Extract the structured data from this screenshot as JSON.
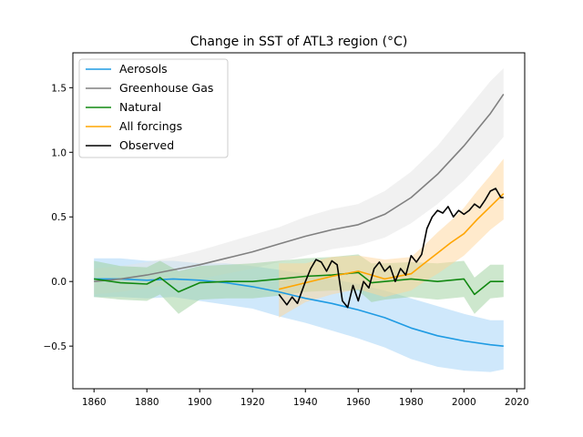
{
  "chart_data": {
    "type": "line",
    "title": "Change in SST of ATL3 region (°C)",
    "xlabel": "",
    "ylabel": "",
    "xlim": [
      1852,
      2023
    ],
    "ylim": [
      -0.83,
      1.77
    ],
    "xticks": [
      1860,
      1880,
      1900,
      1920,
      1940,
      1960,
      1980,
      2000,
      2020
    ],
    "yticks": [
      -0.5,
      0.0,
      0.5,
      1.0,
      1.5
    ],
    "ytick_labels": [
      "−0.5",
      "0.0",
      "0.5",
      "1.0",
      "1.5"
    ],
    "grid": false,
    "legend_position": "top-left",
    "series": [
      {
        "name": "Aerosols",
        "color": "#1f9be3",
        "band_color": "#9fd2f7",
        "x": [
          1860,
          1870,
          1880,
          1890,
          1900,
          1910,
          1920,
          1930,
          1940,
          1950,
          1960,
          1970,
          1980,
          1990,
          2000,
          2010,
          2015
        ],
        "y": [
          0.02,
          0.02,
          0.01,
          0.02,
          0.01,
          -0.01,
          -0.04,
          -0.08,
          -0.13,
          -0.17,
          -0.22,
          -0.28,
          -0.36,
          -0.42,
          -0.46,
          -0.49,
          -0.5
        ],
        "lo": [
          -0.12,
          -0.12,
          -0.13,
          -0.12,
          -0.15,
          -0.18,
          -0.21,
          -0.27,
          -0.32,
          -0.38,
          -0.44,
          -0.51,
          -0.6,
          -0.66,
          -0.69,
          -0.7,
          -0.68
        ],
        "hi": [
          0.18,
          0.18,
          0.16,
          0.16,
          0.14,
          0.14,
          0.12,
          0.09,
          0.06,
          0.02,
          -0.02,
          -0.07,
          -0.13,
          -0.19,
          -0.25,
          -0.3,
          -0.3
        ]
      },
      {
        "name": "Greenhouse Gas",
        "color": "#808080",
        "band_color": "#e3e3e3",
        "x": [
          1860,
          1870,
          1880,
          1890,
          1900,
          1910,
          1920,
          1930,
          1940,
          1950,
          1960,
          1970,
          1980,
          1990,
          2000,
          2010,
          2015
        ],
        "y": [
          0.0,
          0.02,
          0.05,
          0.09,
          0.13,
          0.18,
          0.23,
          0.29,
          0.35,
          0.4,
          0.44,
          0.52,
          0.65,
          0.83,
          1.05,
          1.3,
          1.45
        ],
        "lo": [
          -0.1,
          -0.08,
          -0.05,
          -0.02,
          0.02,
          0.06,
          0.1,
          0.15,
          0.2,
          0.25,
          0.28,
          0.34,
          0.45,
          0.6,
          0.78,
          1.0,
          1.12
        ],
        "hi": [
          0.1,
          0.12,
          0.15,
          0.19,
          0.24,
          0.3,
          0.36,
          0.42,
          0.5,
          0.56,
          0.6,
          0.7,
          0.85,
          1.05,
          1.3,
          1.55,
          1.65
        ]
      },
      {
        "name": "Natural",
        "color": "#118811",
        "band_color": "#9ccf9c",
        "x": [
          1860,
          1870,
          1880,
          1885,
          1892,
          1900,
          1910,
          1920,
          1930,
          1940,
          1950,
          1960,
          1965,
          1970,
          1980,
          1990,
          2000,
          2004,
          2010,
          2015
        ],
        "y": [
          0.02,
          -0.01,
          -0.02,
          0.03,
          -0.08,
          -0.01,
          0.0,
          0.0,
          0.02,
          0.04,
          0.05,
          0.07,
          -0.01,
          0.0,
          0.02,
          0.0,
          0.02,
          -0.1,
          0.0,
          0.0
        ],
        "lo": [
          -0.12,
          -0.14,
          -0.15,
          -0.1,
          -0.25,
          -0.14,
          -0.13,
          -0.13,
          -0.11,
          -0.08,
          -0.07,
          -0.07,
          -0.16,
          -0.14,
          -0.12,
          -0.14,
          -0.12,
          -0.25,
          -0.13,
          -0.12
        ],
        "hi": [
          0.16,
          0.12,
          0.11,
          0.16,
          0.08,
          0.12,
          0.13,
          0.14,
          0.16,
          0.18,
          0.19,
          0.21,
          0.14,
          0.14,
          0.15,
          0.14,
          0.16,
          0.03,
          0.13,
          0.13
        ]
      },
      {
        "name": "All forcings",
        "color": "#ffa500",
        "band_color": "#ffd699",
        "x": [
          1930,
          1940,
          1950,
          1960,
          1970,
          1980,
          1985,
          1990,
          1995,
          2000,
          2005,
          2010,
          2015
        ],
        "y": [
          -0.06,
          -0.01,
          0.04,
          0.08,
          0.02,
          0.06,
          0.14,
          0.22,
          0.3,
          0.37,
          0.48,
          0.58,
          0.68
        ],
        "lo": [
          -0.28,
          -0.16,
          -0.1,
          -0.06,
          -0.12,
          -0.07,
          0.0,
          0.06,
          0.13,
          0.2,
          0.3,
          0.4,
          0.48
        ],
        "hi": [
          0.14,
          0.14,
          0.19,
          0.2,
          0.17,
          0.19,
          0.28,
          0.38,
          0.47,
          0.57,
          0.7,
          0.82,
          0.95
        ]
      },
      {
        "name": "Observed",
        "color": "#000000",
        "x": [
          1930,
          1933,
          1935,
          1937,
          1940,
          1942,
          1944,
          1946,
          1948,
          1950,
          1952,
          1954,
          1956,
          1958,
          1960,
          1962,
          1964,
          1966,
          1968,
          1970,
          1972,
          1974,
          1976,
          1978,
          1980,
          1982,
          1984,
          1986,
          1988,
          1990,
          1992,
          1994,
          1996,
          1998,
          2000,
          2002,
          2004,
          2006,
          2008,
          2010,
          2012,
          2014,
          2015
        ],
        "y": [
          -0.1,
          -0.18,
          -0.12,
          -0.17,
          0.0,
          0.1,
          0.17,
          0.15,
          0.08,
          0.16,
          0.13,
          -0.15,
          -0.2,
          -0.03,
          -0.15,
          0.0,
          -0.05,
          0.1,
          0.15,
          0.08,
          0.12,
          0.0,
          0.1,
          0.05,
          0.2,
          0.15,
          0.21,
          0.41,
          0.5,
          0.55,
          0.53,
          0.58,
          0.5,
          0.55,
          0.52,
          0.55,
          0.6,
          0.57,
          0.63,
          0.7,
          0.72,
          0.65,
          0.65
        ]
      }
    ]
  }
}
